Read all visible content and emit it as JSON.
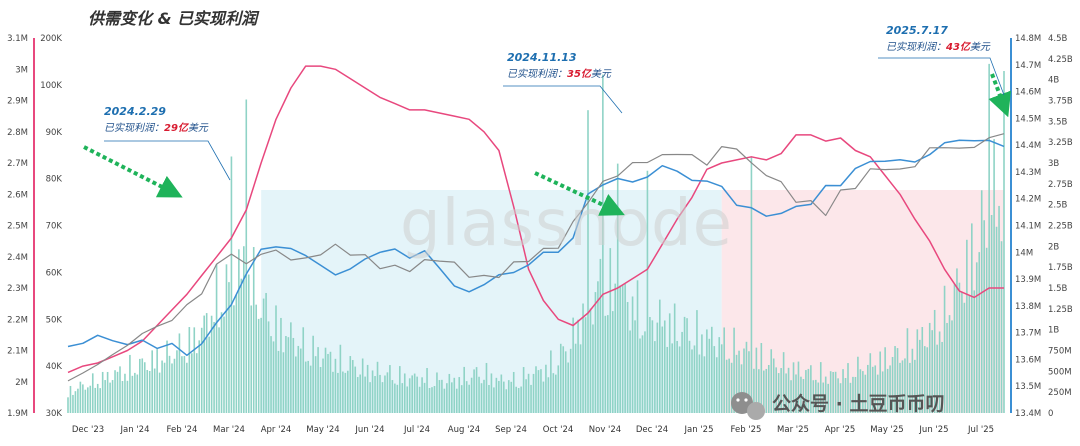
{
  "title": "供需变化 & 已实现利润",
  "brand_watermark": "glassnode",
  "watermark_account": "公众号 · 土豆币币叨",
  "colors": {
    "supply": "#e8487e",
    "price": "#3b8fd4",
    "holders": "#888888",
    "volume": "#8fd3c6",
    "shade_blue": "#dff2f8",
    "shade_red": "#fbe3e6",
    "arrow": "#1fb35a",
    "annotation_date": "#1e6fb0",
    "annotation_value": "#d81b30"
  },
  "annotations": [
    {
      "date": "2024.2.29",
      "label": "已实现利润：",
      "value": "29亿",
      "unit": "美元"
    },
    {
      "date": "2024.11.13",
      "label": "已实现利润：",
      "value": "35亿",
      "unit": "美元"
    },
    {
      "date": "2025.7.17",
      "label": "已实现利润：",
      "value": "43亿",
      "unit": "美元"
    }
  ],
  "chart_data": {
    "type": "line",
    "x_tick_labels": [
      "Dec '23",
      "Jan '24",
      "Feb '24",
      "Mar '24",
      "Apr '24",
      "May '24",
      "Jun '24",
      "Jul '24",
      "Aug '24",
      "Sep '24",
      "Oct '24",
      "Nov '24",
      "Dec '24",
      "Jan '25",
      "Feb '25",
      "Mar '25",
      "Apr '25",
      "May '25",
      "Jun '25",
      "Jul '25"
    ],
    "axes": {
      "left_outer": {
        "ticks": [
          "3.1M",
          "3M",
          "2.9M",
          "2.8M",
          "2.7M",
          "2.6M",
          "2.5M",
          "2.4M",
          "2.3M",
          "2.2M",
          "2.1M",
          "2M",
          "1.9M"
        ],
        "range": [
          1900000,
          3100000
        ]
      },
      "left_price_log": {
        "ticks": [
          "200K",
          "100K",
          "90K",
          "80K",
          "70K",
          "60K",
          "50K",
          "40K",
          "30K"
        ],
        "range": [
          30000,
          200000
        ],
        "scale": "log"
      },
      "right_inner": {
        "ticks": [
          "14.8M",
          "14.7M",
          "14.6M",
          "14.5M",
          "14.4M",
          "14.3M",
          "14.2M",
          "14.1M",
          "14M",
          "13.9M",
          "13.8M",
          "13.7M",
          "13.6M",
          "13.5M",
          "13.4M"
        ],
        "range": [
          13400000,
          14800000
        ]
      },
      "right_outer": {
        "ticks": [
          "4.5B",
          "4.25B",
          "4B",
          "3.75B",
          "3.5B",
          "3.25B",
          "3B",
          "2.75B",
          "2.5B",
          "2.25B",
          "2B",
          "1.75B",
          "1.5B",
          "1.25B",
          "1B",
          "750M",
          "500M",
          "250M",
          "0"
        ],
        "range": [
          0,
          4500000000
        ]
      }
    },
    "series": [
      {
        "key": "supply",
        "axis": "left_outer",
        "values": [
          2030000,
          2050000,
          2060000,
          2080000,
          2100000,
          2130000,
          2180000,
          2230000,
          2280000,
          2340000,
          2400000,
          2460000,
          2550000,
          2700000,
          2840000,
          2940000,
          3010000,
          3010000,
          3000000,
          2970000,
          2940000,
          2910000,
          2890000,
          2870000,
          2870000,
          2860000,
          2850000,
          2840000,
          2800000,
          2740000,
          2560000,
          2360000,
          2260000,
          2200000,
          2180000,
          2220000,
          2280000,
          2300000,
          2330000,
          2360000,
          2440000,
          2520000,
          2590000,
          2680000,
          2700000,
          2710000,
          2720000,
          2710000,
          2730000,
          2790000,
          2790000,
          2770000,
          2780000,
          2740000,
          2720000,
          2660000,
          2600000,
          2520000,
          2450000,
          2360000,
          2290000,
          2270000,
          2300000,
          2300000
        ]
      },
      {
        "key": "price",
        "axis": "left_price_log",
        "scale": "log",
        "values": [
          42000,
          43000,
          44000,
          43500,
          42500,
          43000,
          42000,
          42500,
          40000,
          43000,
          47000,
          52000,
          61000,
          68000,
          70000,
          69000,
          66000,
          64000,
          60000,
          62000,
          66000,
          67000,
          69000,
          66000,
          67500,
          63000,
          57000,
          55000,
          58000,
          60000,
          61000,
          64000,
          67000,
          68000,
          73000,
          90000,
          96000,
          98000,
          96000,
          100000,
          104000,
          102000,
          98000,
          96000,
          95000,
          86000,
          84000,
          82000,
          82000,
          85000,
          87000,
          94000,
          95000,
          104000,
          106000,
          108000,
          108000,
          106000,
          112000,
          117000,
          119000,
          120000,
          118000,
          116000
        ]
      },
      {
        "key": "holders",
        "axis": "right_inner",
        "values": [
          13520000,
          13550000,
          13580000,
          13620000,
          13650000,
          13700000,
          13720000,
          13750000,
          13800000,
          13850000,
          13950000,
          14000000,
          13950000,
          14000000,
          14000000,
          13980000,
          13970000,
          14000000,
          14020000,
          14000000,
          13980000,
          13950000,
          13940000,
          13940000,
          13960000,
          13980000,
          13950000,
          13920000,
          13900000,
          13920000,
          13950000,
          13980000,
          14000000,
          14030000,
          14100000,
          14200000,
          14250000,
          14300000,
          14320000,
          14350000,
          14350000,
          14380000,
          14350000,
          14340000,
          14380000,
          14400000,
          14320000,
          14300000,
          14250000,
          14200000,
          14180000,
          14150000,
          14220000,
          14250000,
          14300000,
          14320000,
          14300000,
          14330000,
          14380000,
          14400000,
          14380000,
          14400000,
          14420000,
          14450000
        ]
      }
    ],
    "volume_shape": [
      0.08,
      0.1,
      0.12,
      0.14,
      0.16,
      0.18,
      0.2,
      0.22,
      0.25,
      0.3,
      0.42,
      0.48,
      0.55,
      0.4,
      0.32,
      0.28,
      0.24,
      0.22,
      0.2,
      0.18,
      0.16,
      0.15,
      0.14,
      0.13,
      0.13,
      0.12,
      0.12,
      0.14,
      0.15,
      0.12,
      0.12,
      0.14,
      0.16,
      0.2,
      0.28,
      0.42,
      0.48,
      0.46,
      0.4,
      0.36,
      0.34,
      0.32,
      0.3,
      0.28,
      0.26,
      0.24,
      0.22,
      0.2,
      0.18,
      0.16,
      0.15,
      0.14,
      0.14,
      0.16,
      0.18,
      0.2,
      0.22,
      0.26,
      0.3,
      0.36,
      0.48,
      0.6,
      0.74,
      0.9
    ],
    "volume_spikes": [
      {
        "at": 11,
        "value": 0.72
      },
      {
        "at": 12,
        "value": 0.88
      },
      {
        "at": 35,
        "value": 0.85
      },
      {
        "at": 36,
        "value": 0.95
      },
      {
        "at": 37,
        "value": 0.7
      },
      {
        "at": 39,
        "value": 0.68
      },
      {
        "at": 46,
        "value": 0.72
      },
      {
        "at": 62,
        "value": 0.98
      },
      {
        "at": 63,
        "value": 0.96
      }
    ],
    "shaded_regions": [
      {
        "from": 13,
        "to": 44,
        "color": "shade_blue"
      },
      {
        "from": 44,
        "to": 63,
        "color": "shade_red"
      }
    ],
    "legend": "none",
    "grid": false
  }
}
